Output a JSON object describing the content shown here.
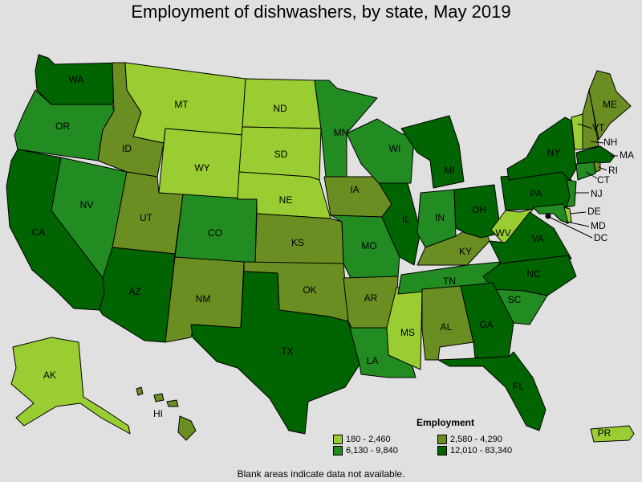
{
  "title": "Employment of dishwashers, by state, May 2019",
  "legend": {
    "title": "Employment",
    "items": [
      {
        "label": "180 - 2,460",
        "color": "#9acd32"
      },
      {
        "label": "2,580 - 4,290",
        "color": "#6b8e23"
      },
      {
        "label": "6,130 - 9,840",
        "color": "#228b22"
      },
      {
        "label": "12,010 - 83,340",
        "color": "#006400"
      }
    ]
  },
  "footnote": "Blank areas indicate data not available.",
  "states": {
    "WA": "WA",
    "OR": "OR",
    "CA": "CA",
    "NV": "NV",
    "ID": "ID",
    "MT": "MT",
    "WY": "WY",
    "UT": "UT",
    "AZ": "AZ",
    "CO": "CO",
    "NM": "NM",
    "ND": "ND",
    "SD": "SD",
    "NE": "NE",
    "KS": "KS",
    "OK": "OK",
    "TX": "TX",
    "MN": "MN",
    "IA": "IA",
    "MO": "MO",
    "AR": "AR",
    "LA": "LA",
    "WI": "WI",
    "IL": "IL",
    "MS": "MS",
    "MI": "MI",
    "IN": "IN",
    "KY": "KY",
    "TN": "TN",
    "AL": "AL",
    "OH": "OH",
    "WV": "WV",
    "VA": "VA",
    "NC": "NC",
    "SC": "SC",
    "GA": "GA",
    "FL": "FL",
    "PA": "PA",
    "NY": "NY",
    "ME": "ME",
    "VT": "VT",
    "NH": "NH",
    "MA": "MA",
    "RI": "RI",
    "CT": "CT",
    "NJ": "NJ",
    "DE": "DE",
    "MD": "MD",
    "DC": "DC",
    "AK": "AK",
    "HI": "HI",
    "PR": "PR"
  }
}
